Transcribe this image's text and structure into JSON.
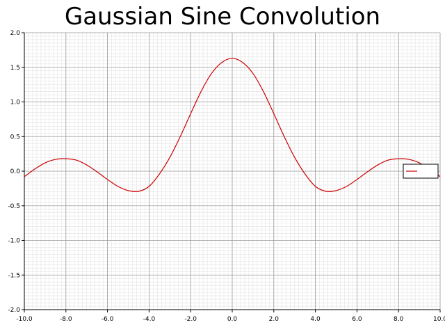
{
  "chart_data": {
    "type": "line",
    "title": "Gaussian Sine Convolution",
    "xlabel": "",
    "ylabel": "",
    "xlim": [
      -10.0,
      10.0
    ],
    "ylim": [
      -2.0,
      2.0
    ],
    "grid": true,
    "minor_grid": true,
    "line_color": "#cc0000",
    "legend": {
      "present": true,
      "placement": "right",
      "entries": [
        ""
      ]
    },
    "x_ticks": [
      "-10.0",
      "-8.0",
      "-6.0",
      "-4.0",
      "-2.0",
      "0.0",
      "2.0",
      "4.0",
      "6.0",
      "8.0",
      "10.0"
    ],
    "y_ticks": [
      "2.0",
      "1.5",
      "1.0",
      "0.5",
      "0.0",
      "-0.5",
      "-1.0",
      "-1.5",
      "-2.0"
    ],
    "series": [
      {
        "x": [
          -10,
          -9.5,
          -9,
          -8.5,
          -8,
          -7.5,
          -7,
          -6.5,
          -6,
          -5.5,
          -5,
          -4.5,
          -4,
          -3.5,
          -3,
          -2.5,
          -2,
          -1.5,
          -1,
          -0.5,
          0,
          0.5,
          1,
          1.5,
          2,
          2.5,
          3,
          3.5,
          4,
          4.5,
          5,
          5.5,
          6,
          6.5,
          7,
          7.5,
          8,
          8.5,
          9,
          9.5,
          10
        ],
        "y": [
          -0.08,
          0.03,
          0.12,
          0.17,
          0.18,
          0.16,
          0.09,
          -0.01,
          -0.12,
          -0.22,
          -0.28,
          -0.29,
          -0.22,
          -0.04,
          0.2,
          0.5,
          0.83,
          1.15,
          1.41,
          1.57,
          1.63,
          1.57,
          1.41,
          1.15,
          0.83,
          0.5,
          0.2,
          -0.04,
          -0.22,
          -0.29,
          -0.28,
          -0.22,
          -0.12,
          -0.01,
          0.09,
          0.16,
          0.18,
          0.17,
          0.12,
          0.03,
          -0.08
        ]
      }
    ]
  }
}
